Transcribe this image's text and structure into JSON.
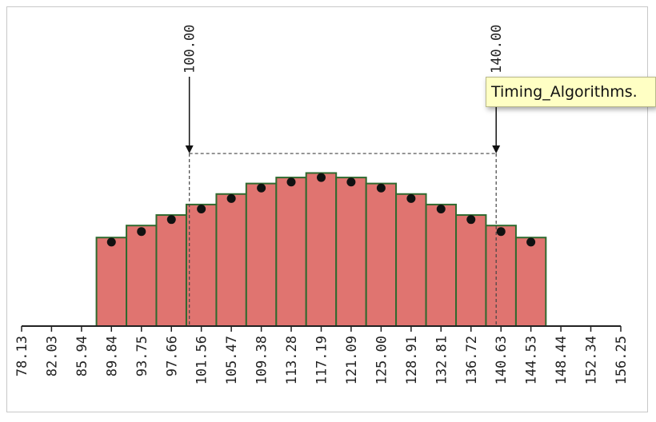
{
  "chart_data": {
    "type": "bar",
    "bin_edges": [
      78.13,
      82.03,
      85.94,
      89.84,
      93.75,
      97.66,
      101.56,
      105.47,
      109.38,
      113.28,
      117.19,
      121.09,
      125.0,
      128.91,
      132.81,
      136.72,
      140.63,
      144.53,
      148.44,
      152.34,
      156.25
    ],
    "tick_labels": [
      "78.13",
      "82.03",
      "85.94",
      "89.84",
      "93.75",
      "97.66",
      "101.56",
      "105.47",
      "109.38",
      "113.28",
      "117.19",
      "121.09",
      "125.00",
      "128.91",
      "132.81",
      "136.72",
      "140.63",
      "144.53",
      "148.44",
      "152.34",
      "156.25"
    ],
    "bars": [
      {
        "x0": 87.89,
        "x1": 91.8,
        "value": 0.59
      },
      {
        "x0": 91.8,
        "x1": 95.7,
        "value": 0.67
      },
      {
        "x0": 95.7,
        "x1": 99.61,
        "value": 0.74
      },
      {
        "x0": 99.61,
        "x1": 103.52,
        "value": 0.81
      },
      {
        "x0": 103.52,
        "x1": 107.42,
        "value": 0.88
      },
      {
        "x0": 107.42,
        "x1": 111.33,
        "value": 0.95
      },
      {
        "x0": 111.33,
        "x1": 115.23,
        "value": 0.99
      },
      {
        "x0": 115.23,
        "x1": 119.14,
        "value": 1.02
      },
      {
        "x0": 119.14,
        "x1": 123.05,
        "value": 0.99
      },
      {
        "x0": 123.05,
        "x1": 126.95,
        "value": 0.95
      },
      {
        "x0": 126.95,
        "x1": 130.86,
        "value": 0.88
      },
      {
        "x0": 130.86,
        "x1": 134.77,
        "value": 0.81
      },
      {
        "x0": 134.77,
        "x1": 138.67,
        "value": 0.74
      },
      {
        "x0": 138.67,
        "x1": 142.58,
        "value": 0.67
      },
      {
        "x0": 142.58,
        "x1": 146.48,
        "value": 0.59
      }
    ],
    "points": [
      {
        "x": 89.84,
        "y": 0.56
      },
      {
        "x": 93.75,
        "y": 0.63
      },
      {
        "x": 97.66,
        "y": 0.71
      },
      {
        "x": 101.56,
        "y": 0.78
      },
      {
        "x": 105.47,
        "y": 0.85
      },
      {
        "x": 109.38,
        "y": 0.92
      },
      {
        "x": 113.28,
        "y": 0.96
      },
      {
        "x": 117.19,
        "y": 0.99
      },
      {
        "x": 121.09,
        "y": 0.96
      },
      {
        "x": 125.0,
        "y": 0.92
      },
      {
        "x": 128.91,
        "y": 0.85
      },
      {
        "x": 132.81,
        "y": 0.78
      },
      {
        "x": 136.72,
        "y": 0.71
      },
      {
        "x": 140.63,
        "y": 0.63
      },
      {
        "x": 144.53,
        "y": 0.56
      }
    ],
    "markers": [
      {
        "x": 100.0,
        "label": "100.00"
      },
      {
        "x": 140.0,
        "label": "140.00"
      }
    ],
    "range_line_y": 1.15,
    "xlim": [
      78.13,
      156.25
    ],
    "ylim": [
      0,
      1.8
    ],
    "colors": {
      "bar_fill": "#e07470",
      "bar_stroke": "#2f6a2f",
      "point": "#111111",
      "axis": "#222222",
      "guide": "#444444"
    }
  },
  "tooltip": {
    "text": "Timing_Algorithms."
  }
}
